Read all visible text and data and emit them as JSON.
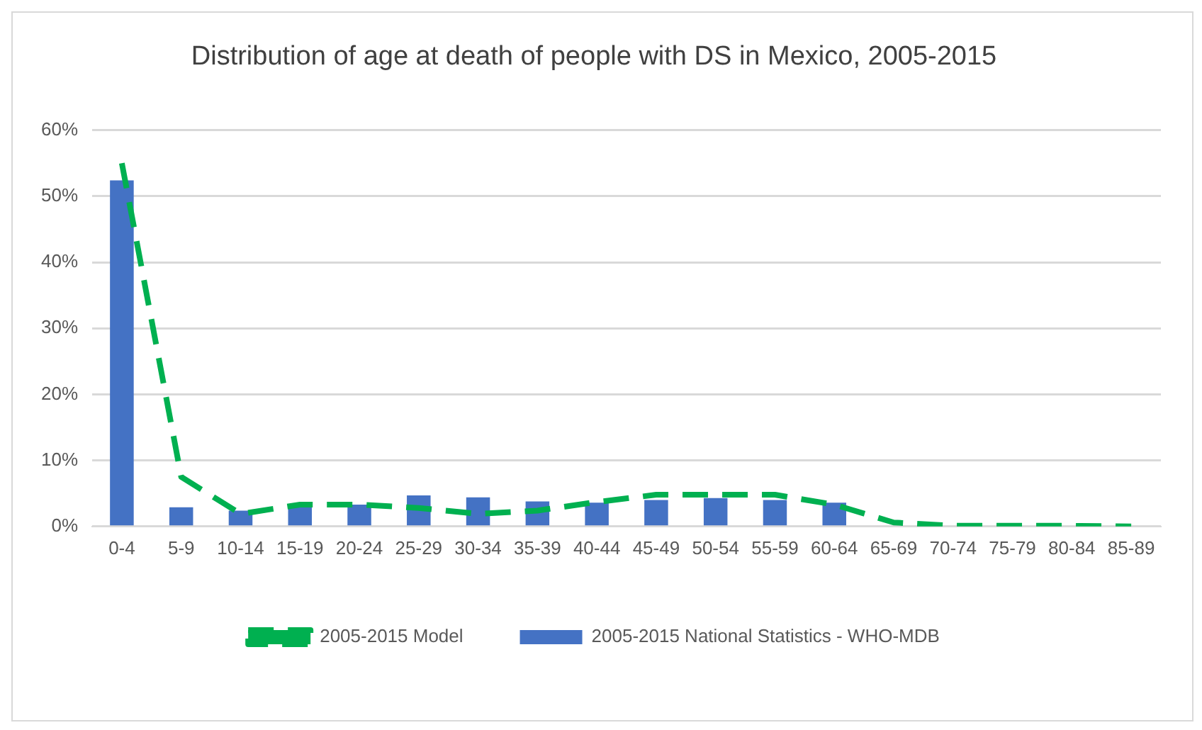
{
  "chart_data": {
    "type": "bar",
    "title": "Distribution of age at death of people with DS in Mexico, 2005-2015",
    "categories": [
      "0-4",
      "5-9",
      "10-14",
      "15-19",
      "20-24",
      "25-29",
      "30-34",
      "35-39",
      "40-44",
      "45-49",
      "50-54",
      "55-59",
      "60-64",
      "65-69",
      "70-74",
      "75-79",
      "80-84",
      "85-89"
    ],
    "series": [
      {
        "name": "2005-2015 National Statistics - WHO-MDB",
        "color": "#4472c4",
        "values": [
          52.4,
          2.9,
          2.4,
          3.3,
          3.3,
          4.7,
          4.4,
          3.8,
          3.6,
          4.0,
          4.3,
          4.0,
          3.6,
          0,
          0,
          0,
          0,
          0
        ]
      },
      {
        "name": "2005-2015 Model",
        "type": "line",
        "color": "#00b050",
        "line_style": "dashed",
        "marker": "none",
        "values": [
          55,
          7.5,
          1.9,
          3.3,
          3.3,
          2.8,
          1.9,
          2.4,
          3.7,
          4.8,
          4.8,
          4.8,
          3.3,
          0.6,
          0.1,
          0.1,
          0.1,
          0
        ]
      }
    ],
    "ylim": [
      0,
      60
    ],
    "yticks": [
      {
        "value": 0,
        "label": "0%"
      },
      {
        "value": 10,
        "label": "10%"
      },
      {
        "value": 20,
        "label": "20%"
      },
      {
        "value": 30,
        "label": "30%"
      },
      {
        "value": 40,
        "label": "40%"
      },
      {
        "value": 50,
        "label": "50%"
      },
      {
        "value": 60,
        "label": "60%"
      }
    ],
    "grid": "y",
    "legend": "bottom"
  }
}
